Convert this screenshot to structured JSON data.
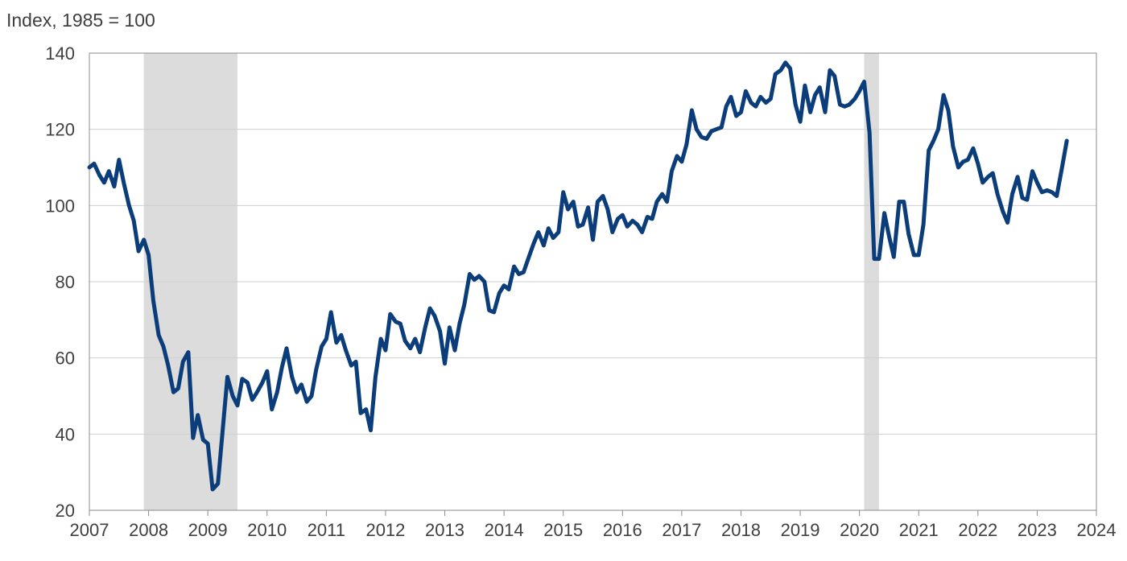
{
  "chart_data": {
    "type": "line",
    "title": "",
    "xlabel": "",
    "ylabel": "Index, 1985 = 100",
    "xlim": [
      2007,
      2024
    ],
    "ylim": [
      20,
      140
    ],
    "x_ticks": [
      "2007",
      "2008",
      "2009",
      "2010",
      "2011",
      "2012",
      "2013",
      "2014",
      "2015",
      "2016",
      "2017",
      "2018",
      "2019",
      "2020",
      "2021",
      "2022",
      "2023",
      "2024"
    ],
    "y_ticks": [
      "20",
      "40",
      "60",
      "80",
      "100",
      "120",
      "140"
    ],
    "grid": "horizontal",
    "legend": "none",
    "recession_shading": [
      {
        "start": 2007.92,
        "end": 2009.5
      },
      {
        "start": 2020.08,
        "end": 2020.33
      }
    ],
    "series": [
      {
        "color": "#0b3d7a",
        "points": [
          [
            2007.0,
            110.0
          ],
          [
            2007.08,
            111.0
          ],
          [
            2007.17,
            108.0
          ],
          [
            2007.25,
            106.0
          ],
          [
            2007.33,
            109.0
          ],
          [
            2007.42,
            105.0
          ],
          [
            2007.5,
            112.0
          ],
          [
            2007.58,
            106.0
          ],
          [
            2007.67,
            100.0
          ],
          [
            2007.75,
            96.0
          ],
          [
            2007.83,
            88.0
          ],
          [
            2007.92,
            91.0
          ],
          [
            2008.0,
            87.0
          ],
          [
            2008.08,
            75.0
          ],
          [
            2008.17,
            66.0
          ],
          [
            2008.25,
            63.0
          ],
          [
            2008.33,
            58.0
          ],
          [
            2008.42,
            51.0
          ],
          [
            2008.5,
            52.0
          ],
          [
            2008.58,
            59.0
          ],
          [
            2008.67,
            61.5
          ],
          [
            2008.75,
            39.0
          ],
          [
            2008.83,
            45.0
          ],
          [
            2008.92,
            38.5
          ],
          [
            2009.0,
            37.5
          ],
          [
            2009.08,
            25.5
          ],
          [
            2009.17,
            27.0
          ],
          [
            2009.25,
            41.0
          ],
          [
            2009.33,
            55.0
          ],
          [
            2009.42,
            50.0
          ],
          [
            2009.5,
            47.5
          ],
          [
            2009.58,
            54.5
          ],
          [
            2009.67,
            53.5
          ],
          [
            2009.75,
            49.0
          ],
          [
            2009.83,
            51.0
          ],
          [
            2009.92,
            53.5
          ],
          [
            2010.0,
            56.5
          ],
          [
            2010.08,
            46.5
          ],
          [
            2010.17,
            51.0
          ],
          [
            2010.25,
            57.5
          ],
          [
            2010.33,
            62.5
          ],
          [
            2010.42,
            55.0
          ],
          [
            2010.5,
            51.0
          ],
          [
            2010.58,
            53.0
          ],
          [
            2010.67,
            48.5
          ],
          [
            2010.75,
            50.0
          ],
          [
            2010.83,
            57.0
          ],
          [
            2010.92,
            63.0
          ],
          [
            2011.0,
            65.0
          ],
          [
            2011.08,
            72.0
          ],
          [
            2011.17,
            64.0
          ],
          [
            2011.25,
            66.0
          ],
          [
            2011.33,
            62.0
          ],
          [
            2011.42,
            58.0
          ],
          [
            2011.5,
            59.0
          ],
          [
            2011.58,
            45.5
          ],
          [
            2011.67,
            46.5
          ],
          [
            2011.75,
            41.0
          ],
          [
            2011.83,
            55.0
          ],
          [
            2011.92,
            65.0
          ],
          [
            2012.0,
            62.0
          ],
          [
            2012.08,
            71.5
          ],
          [
            2012.17,
            69.5
          ],
          [
            2012.25,
            69.0
          ],
          [
            2012.33,
            64.5
          ],
          [
            2012.42,
            62.5
          ],
          [
            2012.5,
            65.0
          ],
          [
            2012.58,
            61.5
          ],
          [
            2012.67,
            68.0
          ],
          [
            2012.75,
            73.0
          ],
          [
            2012.83,
            71.0
          ],
          [
            2012.92,
            67.0
          ],
          [
            2013.0,
            58.5
          ],
          [
            2013.08,
            68.0
          ],
          [
            2013.17,
            62.0
          ],
          [
            2013.25,
            69.0
          ],
          [
            2013.33,
            74.0
          ],
          [
            2013.42,
            82.0
          ],
          [
            2013.5,
            80.5
          ],
          [
            2013.58,
            81.5
          ],
          [
            2013.67,
            80.0
          ],
          [
            2013.75,
            72.5
          ],
          [
            2013.83,
            72.0
          ],
          [
            2013.92,
            77.0
          ],
          [
            2014.0,
            79.0
          ],
          [
            2014.08,
            78.0
          ],
          [
            2014.17,
            84.0
          ],
          [
            2014.25,
            82.0
          ],
          [
            2014.33,
            82.5
          ],
          [
            2014.42,
            86.5
          ],
          [
            2014.5,
            90.0
          ],
          [
            2014.58,
            93.0
          ],
          [
            2014.67,
            89.5
          ],
          [
            2014.75,
            94.0
          ],
          [
            2014.83,
            91.5
          ],
          [
            2014.92,
            93.0
          ],
          [
            2015.0,
            103.5
          ],
          [
            2015.08,
            99.0
          ],
          [
            2015.17,
            101.0
          ],
          [
            2015.25,
            94.5
          ],
          [
            2015.33,
            95.0
          ],
          [
            2015.42,
            99.5
          ],
          [
            2015.5,
            91.0
          ],
          [
            2015.58,
            101.0
          ],
          [
            2015.67,
            102.5
          ],
          [
            2015.75,
            99.0
          ],
          [
            2015.83,
            93.0
          ],
          [
            2015.92,
            96.5
          ],
          [
            2016.0,
            97.5
          ],
          [
            2016.08,
            94.5
          ],
          [
            2016.17,
            96.0
          ],
          [
            2016.25,
            95.0
          ],
          [
            2016.33,
            93.0
          ],
          [
            2016.42,
            97.0
          ],
          [
            2016.5,
            96.5
          ],
          [
            2016.58,
            101.0
          ],
          [
            2016.67,
            103.0
          ],
          [
            2016.75,
            101.0
          ],
          [
            2016.83,
            109.0
          ],
          [
            2016.92,
            113.0
          ],
          [
            2017.0,
            111.5
          ],
          [
            2017.08,
            116.0
          ],
          [
            2017.17,
            125.0
          ],
          [
            2017.25,
            120.0
          ],
          [
            2017.33,
            118.0
          ],
          [
            2017.42,
            117.5
          ],
          [
            2017.5,
            119.5
          ],
          [
            2017.58,
            120.0
          ],
          [
            2017.67,
            120.5
          ],
          [
            2017.75,
            126.0
          ],
          [
            2017.83,
            128.5
          ],
          [
            2017.92,
            123.5
          ],
          [
            2018.0,
            124.5
          ],
          [
            2018.08,
            130.0
          ],
          [
            2018.17,
            127.0
          ],
          [
            2018.25,
            126.0
          ],
          [
            2018.33,
            128.5
          ],
          [
            2018.42,
            127.0
          ],
          [
            2018.5,
            128.0
          ],
          [
            2018.58,
            134.5
          ],
          [
            2018.67,
            135.5
          ],
          [
            2018.75,
            137.5
          ],
          [
            2018.83,
            136.0
          ],
          [
            2018.92,
            126.5
          ],
          [
            2019.0,
            122.0
          ],
          [
            2019.08,
            131.5
          ],
          [
            2019.17,
            124.5
          ],
          [
            2019.25,
            129.0
          ],
          [
            2019.33,
            131.0
          ],
          [
            2019.42,
            124.5
          ],
          [
            2019.5,
            135.5
          ],
          [
            2019.58,
            134.0
          ],
          [
            2019.67,
            126.5
          ],
          [
            2019.75,
            126.0
          ],
          [
            2019.83,
            126.5
          ],
          [
            2019.92,
            128.0
          ],
          [
            2020.0,
            130.0
          ],
          [
            2020.08,
            132.5
          ],
          [
            2020.17,
            119.0
          ],
          [
            2020.25,
            86.0
          ],
          [
            2020.33,
            86.0
          ],
          [
            2020.42,
            98.0
          ],
          [
            2020.5,
            92.0
          ],
          [
            2020.58,
            86.5
          ],
          [
            2020.67,
            101.0
          ],
          [
            2020.75,
            101.0
          ],
          [
            2020.83,
            92.5
          ],
          [
            2020.92,
            87.0
          ],
          [
            2021.0,
            87.0
          ],
          [
            2021.08,
            95.0
          ],
          [
            2021.17,
            114.5
          ],
          [
            2021.25,
            117.0
          ],
          [
            2021.33,
            120.0
          ],
          [
            2021.42,
            129.0
          ],
          [
            2021.5,
            125.0
          ],
          [
            2021.58,
            115.5
          ],
          [
            2021.67,
            110.0
          ],
          [
            2021.75,
            111.5
          ],
          [
            2021.83,
            112.0
          ],
          [
            2021.92,
            115.0
          ],
          [
            2022.0,
            111.0
          ],
          [
            2022.08,
            106.0
          ],
          [
            2022.17,
            107.5
          ],
          [
            2022.25,
            108.5
          ],
          [
            2022.33,
            103.0
          ],
          [
            2022.42,
            98.5
          ],
          [
            2022.5,
            95.5
          ],
          [
            2022.58,
            103.0
          ],
          [
            2022.67,
            107.5
          ],
          [
            2022.75,
            102.0
          ],
          [
            2022.83,
            101.5
          ],
          [
            2022.92,
            109.0
          ],
          [
            2023.0,
            106.0
          ],
          [
            2023.08,
            103.5
          ],
          [
            2023.17,
            104.0
          ],
          [
            2023.25,
            103.5
          ],
          [
            2023.33,
            102.5
          ],
          [
            2023.42,
            110.0
          ],
          [
            2023.5,
            117.0
          ]
        ]
      }
    ]
  }
}
